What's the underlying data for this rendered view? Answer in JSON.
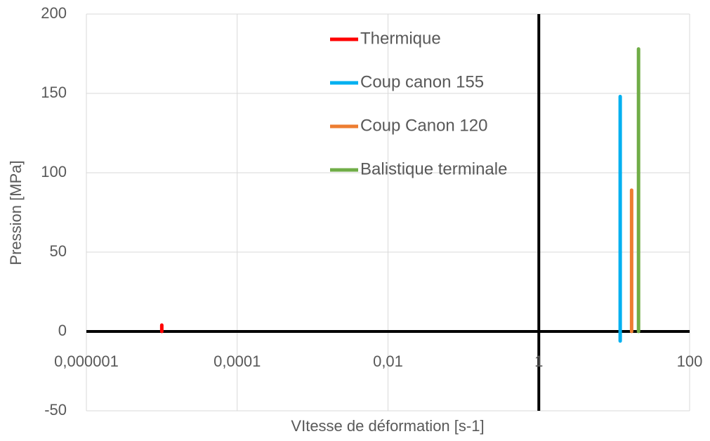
{
  "chart_data": {
    "type": "line",
    "x_label": "VItesse de déformation [s-1]",
    "y_label": "Pression [MPa]",
    "xscale": "log",
    "xlim": [
      1e-06,
      100
    ],
    "xticks": [
      {
        "value": 1e-06,
        "label": "0,000001"
      },
      {
        "value": 0.0001,
        "label": "0,0001"
      },
      {
        "value": 0.01,
        "label": "0,01"
      },
      1,
      100
    ],
    "ylim": [
      -50,
      200
    ],
    "yticks": [
      -50,
      0,
      50,
      100,
      150,
      200
    ],
    "grid": true,
    "legend": "top",
    "series": [
      {
        "name": "Thermique",
        "color": "#ff0000",
        "x": [
          1e-05,
          1e-05
        ],
        "values": [
          0,
          4
        ]
      },
      {
        "name": "Coup canon 155",
        "color": "#00b0f0",
        "x": [
          12,
          12
        ],
        "values": [
          -6,
          148
        ]
      },
      {
        "name": "Coup Canon 120",
        "color": "#ed7d31",
        "x": [
          17,
          17
        ],
        "values": [
          0,
          89
        ]
      },
      {
        "name": "Balistique terminale",
        "color": "#70ad47",
        "x": [
          21,
          21
        ],
        "values": [
          0,
          178
        ]
      }
    ]
  }
}
